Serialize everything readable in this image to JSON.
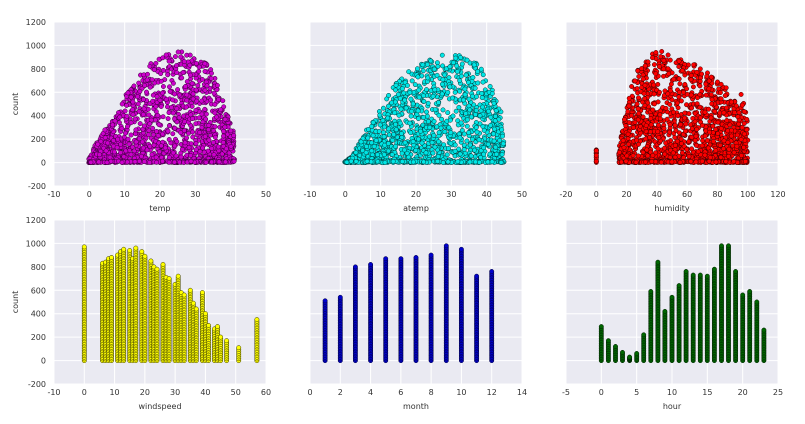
{
  "chart_data": [
    {
      "type": "scatter",
      "xlabel": "temp",
      "ylabel": "count",
      "xlim": [
        -10,
        50
      ],
      "ylim": [
        -200,
        1200
      ],
      "xticks": [
        "-10",
        "0",
        "10",
        "20",
        "30",
        "40",
        "50"
      ],
      "yticks": [
        "-200",
        "0",
        "200",
        "400",
        "600",
        "800",
        "1000",
        "1200"
      ],
      "show_yticklabels": true,
      "grid": true,
      "marker_color": "#cc00cc",
      "edge_color": "#330033",
      "shape": "cloud",
      "envelope": [
        [
          0,
          50
        ],
        [
          2,
          170
        ],
        [
          5,
          310
        ],
        [
          8,
          420
        ],
        [
          10,
          570
        ],
        [
          13,
          700
        ],
        [
          15,
          780
        ],
        [
          18,
          860
        ],
        [
          20,
          900
        ],
        [
          23,
          940
        ],
        [
          25,
          960
        ],
        [
          28,
          950
        ],
        [
          30,
          900
        ],
        [
          33,
          850
        ],
        [
          35,
          800
        ],
        [
          37,
          600
        ],
        [
          39,
          450
        ],
        [
          40,
          330
        ],
        [
          41,
          300
        ]
      ]
    },
    {
      "type": "scatter",
      "xlabel": "atemp",
      "ylabel": "",
      "xlim": [
        -10,
        50
      ],
      "ylim": [
        -200,
        1200
      ],
      "xticks": [
        "-10",
        "0",
        "10",
        "20",
        "30",
        "40",
        "50"
      ],
      "yticks": [
        "-200",
        "0",
        "200",
        "400",
        "600",
        "800",
        "1000",
        "1200"
      ],
      "show_yticklabels": false,
      "grid": true,
      "marker_color": "#00e5e5",
      "edge_color": "#003333",
      "shape": "cloud",
      "envelope": [
        [
          0,
          10
        ],
        [
          2,
          50
        ],
        [
          4,
          180
        ],
        [
          6,
          270
        ],
        [
          8,
          370
        ],
        [
          10,
          450
        ],
        [
          12,
          570
        ],
        [
          14,
          670
        ],
        [
          16,
          730
        ],
        [
          18,
          780
        ],
        [
          20,
          820
        ],
        [
          22,
          860
        ],
        [
          25,
          890
        ],
        [
          28,
          930
        ],
        [
          31,
          960
        ],
        [
          34,
          920
        ],
        [
          37,
          850
        ],
        [
          40,
          730
        ],
        [
          42,
          600
        ],
        [
          44,
          430
        ],
        [
          45,
          300
        ]
      ]
    },
    {
      "type": "scatter",
      "xlabel": "humidity",
      "ylabel": "",
      "xlim": [
        -20,
        120
      ],
      "ylim": [
        -200,
        1200
      ],
      "xticks": [
        "-20",
        "0",
        "20",
        "40",
        "60",
        "80",
        "100",
        "120"
      ],
      "yticks": [
        "-200",
        "0",
        "200",
        "400",
        "600",
        "800",
        "1000",
        "1200"
      ],
      "show_yticklabels": false,
      "grid": true,
      "marker_color": "#ff0000",
      "edge_color": "#330000",
      "shape": "cloud",
      "isolated_columns": [
        [
          0,
          110
        ]
      ],
      "envelope": [
        [
          15,
          120
        ],
        [
          18,
          350
        ],
        [
          22,
          600
        ],
        [
          25,
          750
        ],
        [
          30,
          850
        ],
        [
          35,
          900
        ],
        [
          40,
          970
        ],
        [
          45,
          960
        ],
        [
          50,
          890
        ],
        [
          55,
          880
        ],
        [
          60,
          870
        ],
        [
          65,
          860
        ],
        [
          70,
          800
        ],
        [
          75,
          760
        ],
        [
          80,
          700
        ],
        [
          85,
          650
        ],
        [
          90,
          560
        ],
        [
          93,
          520
        ],
        [
          95,
          600
        ],
        [
          100,
          450
        ]
      ]
    },
    {
      "type": "scatter",
      "xlabel": "windspeed",
      "ylabel": "count",
      "xlim": [
        -10,
        60
      ],
      "ylim": [
        -200,
        1200
      ],
      "xticks": [
        "-10",
        "0",
        "10",
        "20",
        "30",
        "40",
        "50",
        "60"
      ],
      "yticks": [
        "-200",
        "0",
        "200",
        "400",
        "600",
        "800",
        "1000",
        "1200"
      ],
      "show_yticklabels": true,
      "grid": true,
      "marker_color": "#ffff00",
      "edge_color": "#333300",
      "shape": "columns",
      "columns": [
        [
          0,
          970
        ],
        [
          6,
          830
        ],
        [
          7,
          840
        ],
        [
          8,
          870
        ],
        [
          9,
          880
        ],
        [
          11,
          900
        ],
        [
          12,
          930
        ],
        [
          13,
          950
        ],
        [
          15,
          940
        ],
        [
          16,
          870
        ],
        [
          17,
          960
        ],
        [
          19,
          930
        ],
        [
          20,
          890
        ],
        [
          22,
          850
        ],
        [
          23,
          800
        ],
        [
          24,
          780
        ],
        [
          26,
          820
        ],
        [
          27,
          710
        ],
        [
          28,
          700
        ],
        [
          30,
          650
        ],
        [
          31,
          720
        ],
        [
          32,
          580
        ],
        [
          33,
          560
        ],
        [
          35,
          600
        ],
        [
          36,
          490
        ],
        [
          37,
          440
        ],
        [
          39,
          580
        ],
        [
          40,
          400
        ],
        [
          41,
          300
        ],
        [
          43,
          270
        ],
        [
          44,
          290
        ],
        [
          45,
          200
        ],
        [
          47,
          170
        ],
        [
          51,
          110
        ],
        [
          57,
          350
        ]
      ]
    },
    {
      "type": "scatter",
      "xlabel": "month",
      "ylabel": "",
      "xlim": [
        0,
        14
      ],
      "ylim": [
        -200,
        1200
      ],
      "xticks": [
        "0",
        "2",
        "4",
        "6",
        "8",
        "10",
        "12",
        "14"
      ],
      "yticks": [
        "-200",
        "0",
        "200",
        "400",
        "600",
        "800",
        "1000",
        "1200"
      ],
      "show_yticklabels": false,
      "grid": true,
      "marker_color": "#0000cc",
      "edge_color": "#000033",
      "shape": "columns",
      "columns": [
        [
          1,
          510
        ],
        [
          2,
          540
        ],
        [
          3,
          800
        ],
        [
          4,
          820
        ],
        [
          5,
          870
        ],
        [
          6,
          870
        ],
        [
          7,
          880
        ],
        [
          8,
          900
        ],
        [
          9,
          980
        ],
        [
          10,
          950
        ],
        [
          11,
          720
        ],
        [
          12,
          760
        ]
      ]
    },
    {
      "type": "scatter",
      "xlabel": "hour",
      "ylabel": "",
      "xlim": [
        -5,
        25
      ],
      "ylim": [
        -200,
        1200
      ],
      "xticks": [
        "-5",
        "0",
        "5",
        "10",
        "15",
        "20",
        "25"
      ],
      "yticks": [
        "-200",
        "0",
        "200",
        "400",
        "600",
        "800",
        "1000",
        "1200"
      ],
      "show_yticklabels": false,
      "grid": true,
      "marker_color": "#006600",
      "edge_color": "#001a00",
      "shape": "columns",
      "columns": [
        [
          0,
          290
        ],
        [
          1,
          170
        ],
        [
          2,
          120
        ],
        [
          3,
          70
        ],
        [
          4,
          30
        ],
        [
          5,
          60
        ],
        [
          6,
          220
        ],
        [
          7,
          590
        ],
        [
          8,
          840
        ],
        [
          9,
          420
        ],
        [
          10,
          540
        ],
        [
          11,
          640
        ],
        [
          12,
          760
        ],
        [
          13,
          730
        ],
        [
          14,
          730
        ],
        [
          15,
          720
        ],
        [
          16,
          780
        ],
        [
          17,
          980
        ],
        [
          18,
          980
        ],
        [
          19,
          760
        ],
        [
          20,
          560
        ],
        [
          21,
          590
        ],
        [
          22,
          500
        ],
        [
          23,
          260
        ]
      ]
    }
  ]
}
